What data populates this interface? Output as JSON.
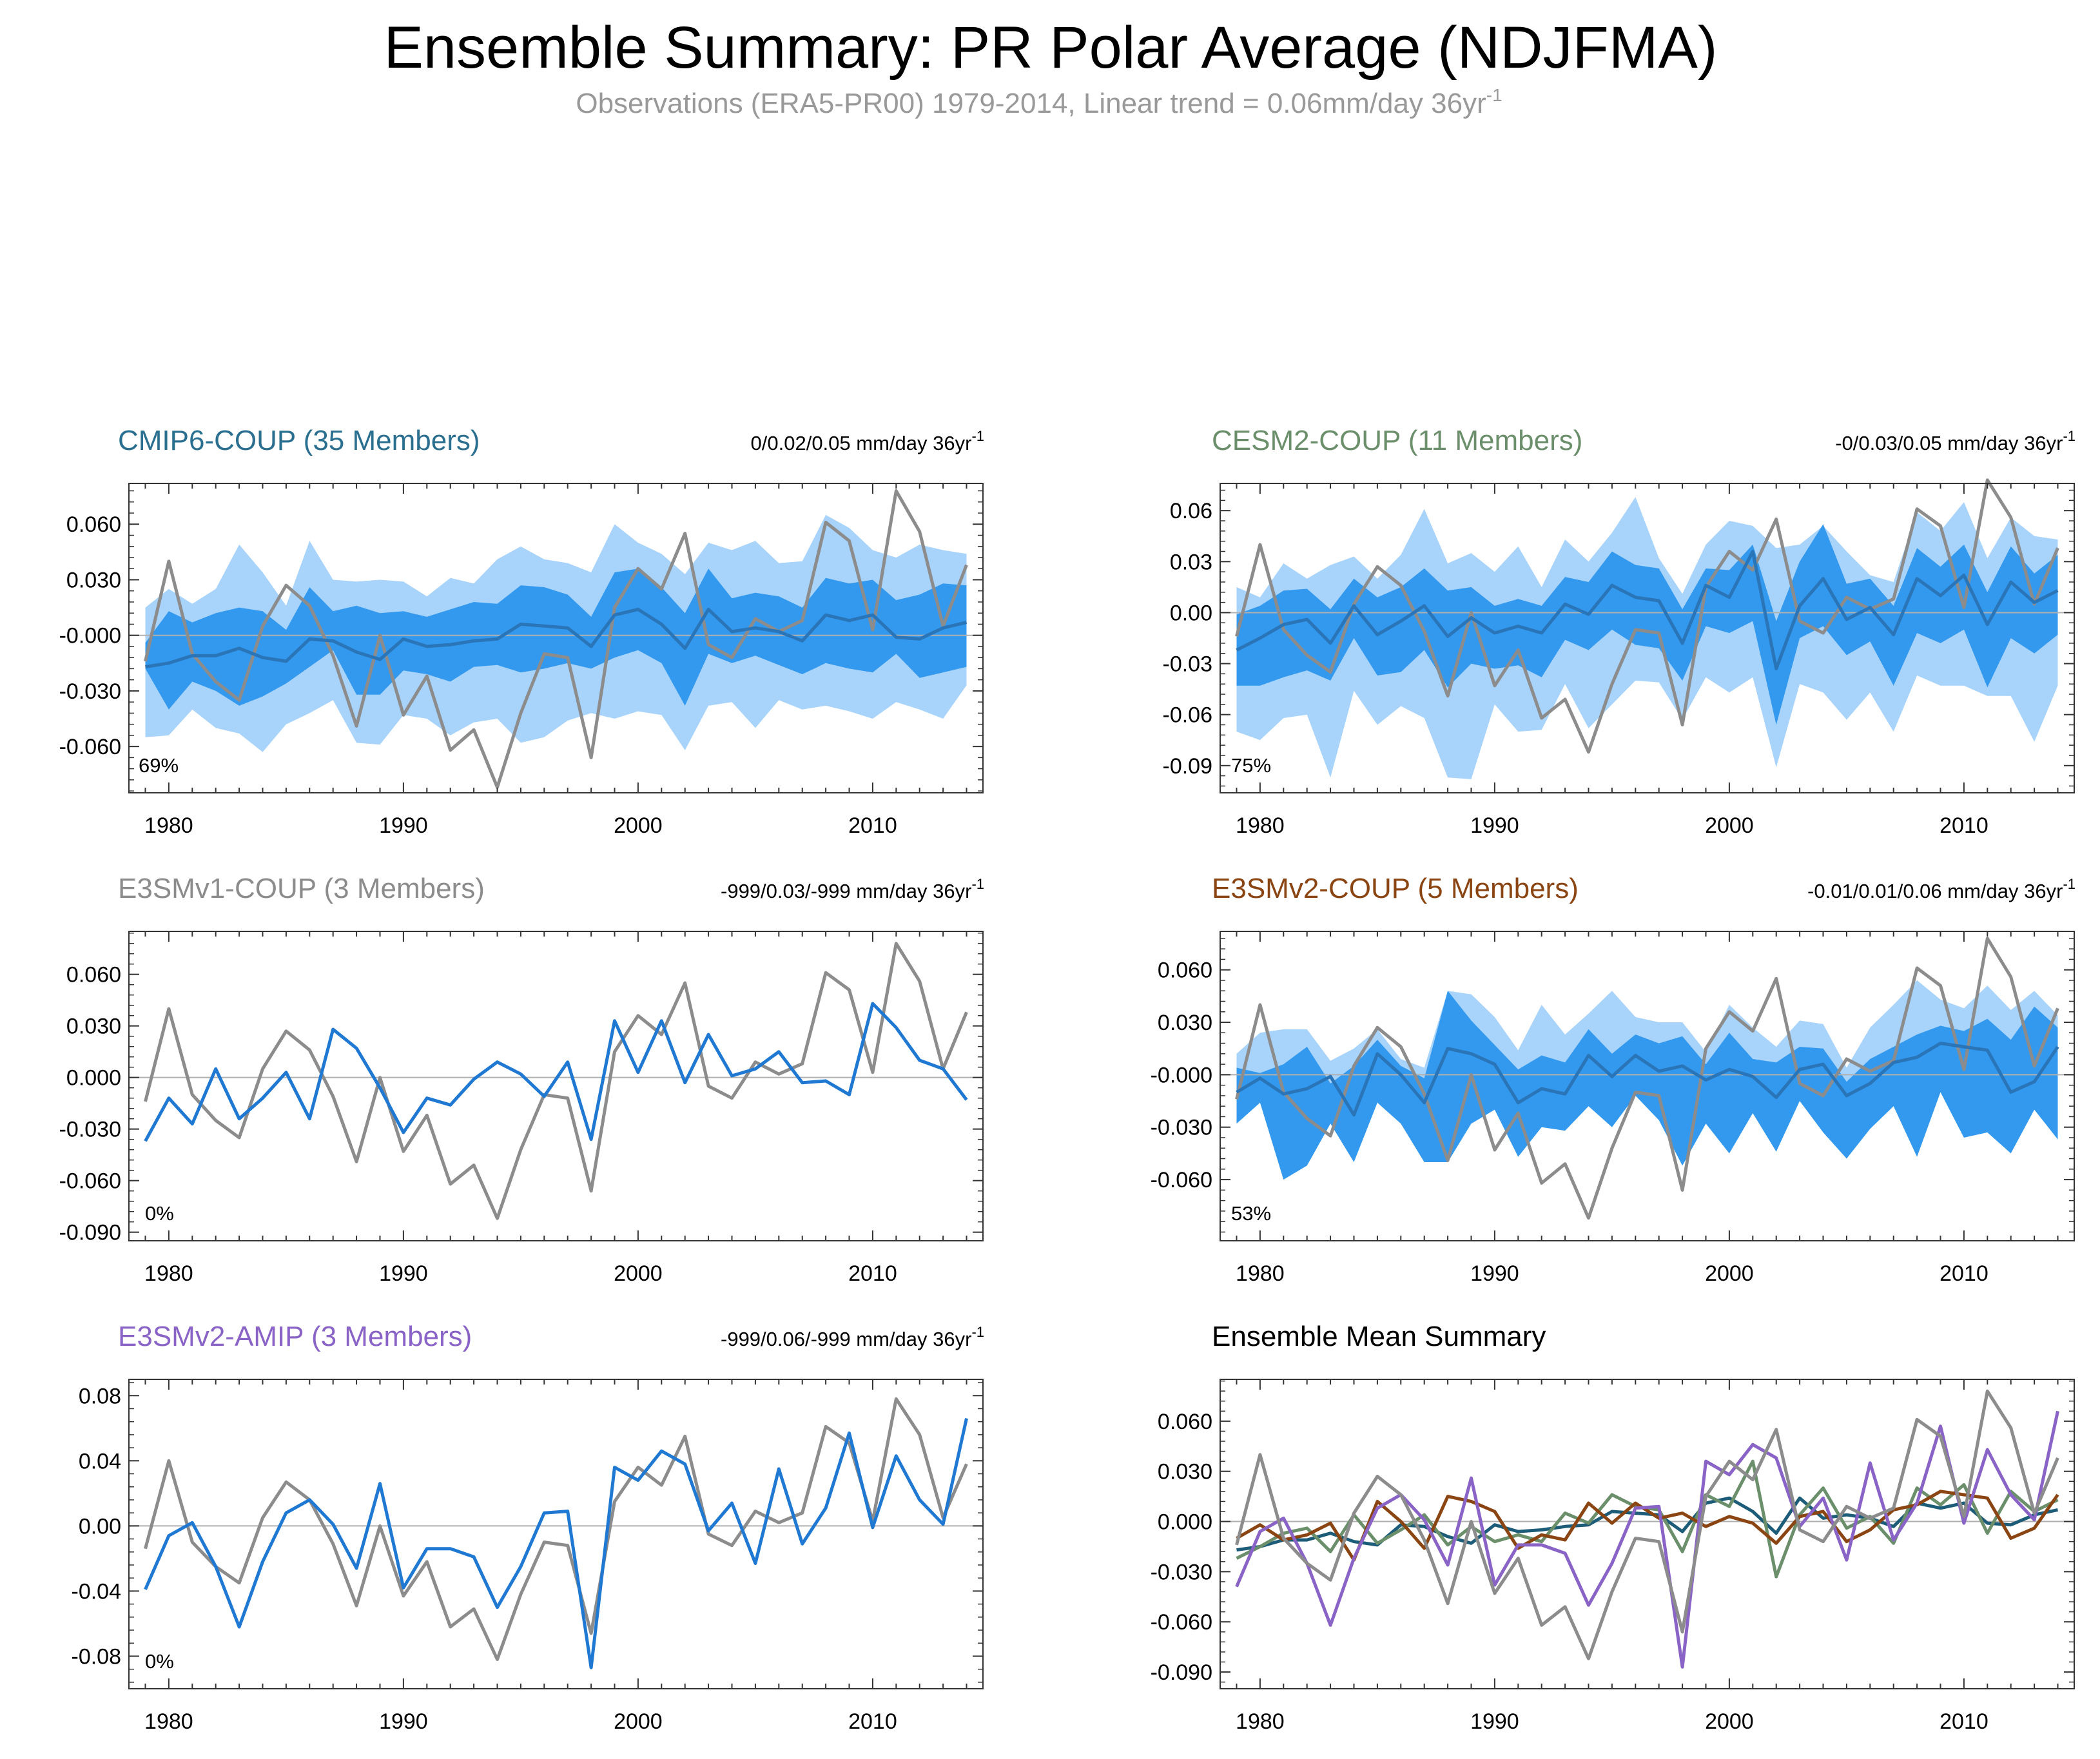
{
  "colors": {
    "obs": "#8c8c8c",
    "mean_line": "#1f78d2",
    "ens_mean_dark": "#2a74b8",
    "band_inner": "#3399ee",
    "band_outer": "#a8d3fb",
    "axis": "#333333",
    "zero_line": "#b0b0b0"
  },
  "chart_data": {
    "title": "Ensemble Summary: PR Polar Average (NDJFMA)",
    "subtitle": "Observations (ERA5-PR00) 1979-2014, Linear trend = 0.06mm/day 36yr",
    "subtitle_sup": "-1",
    "type": "line",
    "years": [
      1979,
      1980,
      1981,
      1982,
      1983,
      1984,
      1985,
      1986,
      1987,
      1988,
      1989,
      1990,
      1991,
      1992,
      1993,
      1994,
      1995,
      1996,
      1997,
      1998,
      1999,
      2000,
      2001,
      2002,
      2003,
      2004,
      2005,
      2006,
      2007,
      2008,
      2009,
      2010,
      2011,
      2012,
      2013,
      2014
    ],
    "xticks": [
      1980,
      1990,
      2000,
      2010
    ],
    "xlim": [
      1978.3,
      2014.7
    ],
    "observations": [
      -0.014,
      0.04,
      -0.01,
      -0.025,
      -0.035,
      0.005,
      0.027,
      0.016,
      -0.011,
      -0.049,
      0.0,
      -0.043,
      -0.022,
      -0.062,
      -0.051,
      -0.082,
      -0.042,
      -0.01,
      -0.012,
      -0.066,
      0.015,
      0.036,
      0.025,
      0.055,
      -0.005,
      -0.012,
      0.009,
      0.002,
      0.008,
      0.061,
      0.051,
      0.003,
      0.078,
      0.056,
      0.005,
      0.038
    ],
    "panels": [
      {
        "title": "CMIP6-COUP (35 Members)",
        "color": "#2a6f8f",
        "trend": "0/0.02/0.05 mm/day 36yr",
        "trend_sup": "-1",
        "percent": "69%",
        "ylim": [
          -0.085,
          0.082
        ],
        "yticks": [
          0.06,
          0.03,
          0.0,
          -0.03,
          -0.06
        ],
        "ytick_labels": [
          "0.060",
          "0.030",
          "-0.000",
          "-0.030",
          "-0.060"
        ],
        "bands": true,
        "mean": [
          -0.017,
          -0.015,
          -0.011,
          -0.011,
          -0.007,
          -0.012,
          -0.014,
          -0.002,
          -0.003,
          -0.009,
          -0.013,
          -0.002,
          -0.006,
          -0.005,
          -0.003,
          -0.002,
          0.006,
          0.005,
          0.004,
          -0.006,
          0.011,
          0.014,
          0.006,
          -0.007,
          0.014,
          0.002,
          0.004,
          0.002,
          -0.003,
          0.011,
          0.008,
          0.011,
          -0.001,
          -0.002,
          0.004,
          0.007
        ],
        "p10": [
          -0.018,
          -0.04,
          -0.025,
          -0.03,
          -0.038,
          -0.033,
          -0.026,
          -0.017,
          -0.008,
          -0.032,
          -0.032,
          -0.019,
          -0.021,
          -0.025,
          -0.017,
          -0.016,
          -0.02,
          -0.018,
          -0.015,
          -0.018,
          -0.012,
          -0.008,
          -0.015,
          -0.038,
          -0.01,
          -0.015,
          -0.011,
          -0.016,
          -0.021,
          -0.015,
          -0.018,
          -0.02,
          -0.01,
          -0.023,
          -0.02,
          -0.017
        ],
        "p90": [
          -0.004,
          0.013,
          0.007,
          0.012,
          0.015,
          0.013,
          0.003,
          0.026,
          0.013,
          0.016,
          0.012,
          0.013,
          0.01,
          0.014,
          0.018,
          0.017,
          0.027,
          0.026,
          0.022,
          0.01,
          0.034,
          0.036,
          0.026,
          0.012,
          0.036,
          0.02,
          0.023,
          0.021,
          0.015,
          0.031,
          0.028,
          0.03,
          0.019,
          0.022,
          0.028,
          0.027
        ],
        "min": [
          -0.055,
          -0.054,
          -0.04,
          -0.05,
          -0.053,
          -0.063,
          -0.048,
          -0.042,
          -0.035,
          -0.058,
          -0.059,
          -0.043,
          -0.045,
          -0.054,
          -0.047,
          -0.045,
          -0.058,
          -0.055,
          -0.046,
          -0.042,
          -0.045,
          -0.041,
          -0.043,
          -0.062,
          -0.038,
          -0.036,
          -0.05,
          -0.035,
          -0.04,
          -0.038,
          -0.041,
          -0.045,
          -0.036,
          -0.04,
          -0.045,
          -0.027
        ],
        "max": [
          0.015,
          0.025,
          0.017,
          0.025,
          0.049,
          0.034,
          0.016,
          0.051,
          0.03,
          0.029,
          0.03,
          0.029,
          0.021,
          0.031,
          0.028,
          0.041,
          0.048,
          0.041,
          0.039,
          0.034,
          0.06,
          0.05,
          0.044,
          0.033,
          0.05,
          0.046,
          0.051,
          0.039,
          0.04,
          0.065,
          0.058,
          0.046,
          0.042,
          0.049,
          0.046,
          0.044
        ]
      },
      {
        "title": "CESM2-COUP (11 Members)",
        "color": "#6b8f6b",
        "trend": "-0/0.03/0.05 mm/day 36yr",
        "trend_sup": "-1",
        "percent": "75%",
        "ylim": [
          -0.106,
          0.076
        ],
        "yticks": [
          0.06,
          0.03,
          0.0,
          -0.03,
          -0.06,
          -0.09
        ],
        "ytick_labels": [
          "0.06",
          "0.03",
          "0.00",
          "-0.03",
          "-0.06",
          "-0.09"
        ],
        "bands": true,
        "mean": [
          -0.022,
          -0.015,
          -0.007,
          -0.004,
          -0.018,
          0.004,
          -0.013,
          -0.005,
          0.004,
          -0.014,
          -0.003,
          -0.012,
          -0.008,
          -0.012,
          0.005,
          -0.001,
          0.016,
          0.009,
          0.007,
          -0.018,
          0.016,
          0.009,
          0.036,
          -0.033,
          0.004,
          0.02,
          -0.004,
          0.003,
          -0.013,
          0.02,
          0.01,
          0.022,
          -0.007,
          0.018,
          0.006,
          0.013
        ],
        "p10": [
          -0.043,
          -0.043,
          -0.038,
          -0.034,
          -0.04,
          -0.015,
          -0.037,
          -0.035,
          -0.022,
          -0.044,
          -0.03,
          -0.033,
          -0.031,
          -0.038,
          -0.016,
          -0.022,
          -0.01,
          -0.019,
          -0.021,
          -0.04,
          -0.008,
          -0.012,
          -0.005,
          -0.066,
          -0.015,
          -0.008,
          -0.025,
          -0.017,
          -0.043,
          -0.012,
          -0.018,
          -0.01,
          -0.044,
          -0.015,
          -0.024,
          -0.013
        ],
        "p90": [
          -0.001,
          0.004,
          0.013,
          0.014,
          0.002,
          0.02,
          0.009,
          0.015,
          0.026,
          0.013,
          0.015,
          0.004,
          0.008,
          0.004,
          0.021,
          0.018,
          0.036,
          0.028,
          0.026,
          0.002,
          0.026,
          0.025,
          0.04,
          -0.005,
          0.03,
          0.052,
          0.017,
          0.02,
          0.004,
          0.038,
          0.027,
          0.04,
          0.012,
          0.039,
          0.023,
          0.034
        ],
        "min": [
          -0.07,
          -0.075,
          -0.062,
          -0.06,
          -0.097,
          -0.046,
          -0.066,
          -0.055,
          -0.062,
          -0.097,
          -0.098,
          -0.054,
          -0.07,
          -0.069,
          -0.042,
          -0.068,
          -0.054,
          -0.04,
          -0.041,
          -0.063,
          -0.038,
          -0.047,
          -0.038,
          -0.091,
          -0.042,
          -0.047,
          -0.063,
          -0.047,
          -0.07,
          -0.037,
          -0.043,
          -0.043,
          -0.049,
          -0.049,
          -0.076,
          -0.043
        ],
        "max": [
          0.015,
          0.009,
          0.029,
          0.02,
          0.028,
          0.033,
          0.02,
          0.034,
          0.061,
          0.029,
          0.035,
          0.024,
          0.039,
          0.015,
          0.043,
          0.03,
          0.047,
          0.068,
          0.032,
          0.011,
          0.04,
          0.054,
          0.051,
          0.038,
          0.04,
          0.051,
          0.036,
          0.022,
          0.018,
          0.059,
          0.048,
          0.065,
          0.032,
          0.056,
          0.045,
          0.043
        ]
      },
      {
        "title": "E3SMv1-COUP (3 Members)",
        "color": "#8c8c8c",
        "trend": "-999/0.03/-999 mm/day 36yr",
        "trend_sup": "-1",
        "percent": "0%",
        "ylim": [
          -0.095,
          0.085
        ],
        "yticks": [
          0.06,
          0.03,
          0.0,
          -0.03,
          -0.06,
          -0.09
        ],
        "ytick_labels": [
          "0.060",
          "0.030",
          "0.000",
          "-0.030",
          "-0.060",
          "-0.090"
        ],
        "bands": false,
        "mean": [
          -0.037,
          -0.012,
          -0.027,
          0.005,
          -0.024,
          -0.012,
          0.003,
          -0.024,
          0.028,
          0.017,
          -0.006,
          -0.032,
          -0.012,
          -0.016,
          -0.001,
          0.009,
          0.002,
          -0.011,
          0.009,
          -0.036,
          0.033,
          0.003,
          0.033,
          -0.003,
          0.025,
          0.001,
          0.005,
          0.015,
          -0.003,
          -0.002,
          -0.01,
          0.043,
          0.029,
          0.01,
          0.005,
          -0.013
        ]
      },
      {
        "title": "E3SMv2-COUP (5 Members)",
        "color": "#8b4513",
        "trend": "-0.01/0.01/0.06 mm/day 36yr",
        "trend_sup": "-1",
        "percent": "53%",
        "ylim": [
          -0.095,
          0.082
        ],
        "yticks": [
          0.06,
          0.03,
          0.0,
          -0.03,
          -0.06
        ],
        "ytick_labels": [
          "0.060",
          "0.030",
          "-0.000",
          "-0.030",
          "-0.060"
        ],
        "bands": true,
        "mean": [
          -0.01,
          -0.002,
          -0.011,
          -0.008,
          -0.001,
          -0.023,
          0.012,
          0.0,
          -0.016,
          0.015,
          0.012,
          0.006,
          -0.016,
          -0.008,
          -0.011,
          0.011,
          -0.001,
          0.011,
          0.002,
          0.005,
          -0.003,
          0.003,
          -0.001,
          -0.013,
          0.003,
          0.006,
          -0.012,
          -0.005,
          0.007,
          0.01,
          0.018,
          0.016,
          0.014,
          -0.01,
          -0.004,
          0.016
        ],
        "p10": [
          -0.028,
          -0.016,
          -0.06,
          -0.052,
          -0.028,
          -0.05,
          -0.016,
          -0.028,
          -0.05,
          -0.05,
          -0.028,
          -0.02,
          -0.047,
          -0.03,
          -0.032,
          -0.018,
          -0.03,
          -0.012,
          -0.026,
          -0.052,
          -0.028,
          -0.045,
          -0.022,
          -0.044,
          -0.015,
          -0.033,
          -0.048,
          -0.031,
          -0.018,
          -0.047,
          -0.01,
          -0.036,
          -0.033,
          -0.045,
          -0.02,
          -0.037
        ],
        "p90": [
          0.004,
          0.001,
          0.006,
          0.016,
          -0.005,
          0.005,
          0.02,
          0.005,
          -0.002,
          0.048,
          0.031,
          0.017,
          0.003,
          0.011,
          0.007,
          0.026,
          0.012,
          0.023,
          0.018,
          0.022,
          0.006,
          0.024,
          0.009,
          0.007,
          0.016,
          0.015,
          -0.004,
          0.009,
          0.016,
          0.023,
          0.028,
          0.025,
          0.032,
          0.02,
          0.039,
          0.027
        ],
        "min": [
          -0.012,
          -0.016,
          -0.044,
          -0.022,
          -0.02,
          -0.041,
          -0.002,
          -0.016,
          -0.033,
          -0.033,
          -0.016,
          -0.005,
          -0.024,
          -0.018,
          -0.018,
          -0.001,
          -0.008,
          -0.002,
          -0.006,
          -0.016,
          -0.009,
          -0.016,
          -0.006,
          -0.02,
          -0.006,
          -0.011,
          -0.024,
          -0.012,
          -0.004,
          -0.02,
          -0.001,
          -0.019,
          -0.016,
          -0.022,
          -0.006,
          -0.02
        ],
        "max": [
          0.012,
          0.024,
          0.026,
          0.026,
          0.008,
          0.015,
          0.026,
          0.009,
          0.004,
          0.048,
          0.046,
          0.033,
          0.014,
          0.04,
          0.023,
          0.035,
          0.048,
          0.033,
          0.03,
          0.03,
          0.013,
          0.04,
          0.027,
          0.016,
          0.031,
          0.029,
          0.004,
          0.027,
          0.04,
          0.054,
          0.043,
          0.038,
          0.051,
          0.037,
          0.048,
          0.034
        ]
      },
      {
        "title": "E3SMv2-AMIP (3 Members)",
        "color": "#8a63c7",
        "trend": "-999/0.06/-999 mm/day 36yr",
        "trend_sup": "-1",
        "percent": "0%",
        "ylim": [
          -0.1,
          0.09
        ],
        "yticks": [
          0.08,
          0.04,
          0.0,
          -0.04,
          -0.08
        ],
        "ytick_labels": [
          "0.08",
          "0.04",
          "0.00",
          "-0.04",
          "-0.08"
        ],
        "bands": false,
        "mean": [
          -0.039,
          -0.006,
          0.002,
          -0.025,
          -0.062,
          -0.022,
          0.008,
          0.016,
          0.001,
          -0.026,
          0.026,
          -0.038,
          -0.014,
          -0.014,
          -0.019,
          -0.05,
          -0.025,
          0.008,
          0.009,
          -0.087,
          0.036,
          0.028,
          0.046,
          0.038,
          -0.003,
          0.014,
          -0.023,
          0.035,
          -0.011,
          0.011,
          0.057,
          -0.001,
          0.043,
          0.016,
          0.001,
          0.066
        ]
      },
      {
        "title": "Ensemble Mean Summary",
        "color": "#000000",
        "ylim": [
          -0.1,
          0.085
        ],
        "yticks": [
          0.06,
          0.03,
          0.0,
          -0.03,
          -0.06,
          -0.09
        ],
        "ytick_labels": [
          "0.060",
          "0.030",
          "0.000",
          "-0.030",
          "-0.060",
          "-0.090"
        ],
        "summary": true,
        "series_colors": [
          "#1d5c78",
          "#6b8f6b",
          "#8b4513",
          "#8a63c7"
        ]
      }
    ]
  }
}
